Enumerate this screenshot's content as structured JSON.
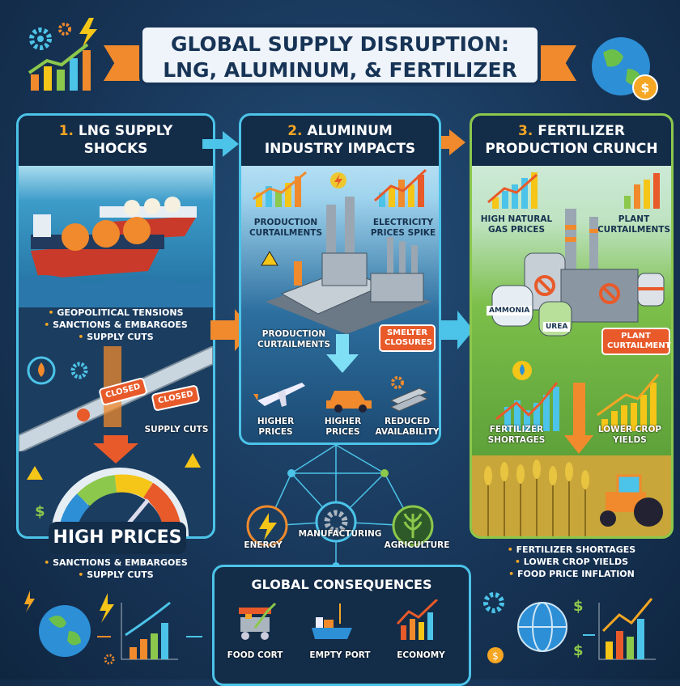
{
  "title": {
    "line1": "GLOBAL SUPPLY DISRUPTION:",
    "line2": "LNG, ALUMINUM, & FERTILIZER"
  },
  "panels": [
    {
      "number": "1.",
      "title_line1": "LNG SUPPLY",
      "title_line2": "SHOCKS",
      "bullets": [
        "GEOPOLITICAL TENSIONS",
        "SANCTIONS & EMBARGOES",
        "SUPPLY CUTS"
      ],
      "signs": [
        "CLOSED",
        "CLOSED"
      ],
      "supply_cuts_label": "SUPPLY CUTS",
      "gauge_label": "HIGH PRICES",
      "footer_bullets": [
        "SANCTIONS & EMBARGOES",
        "SUPPLY CUTS"
      ]
    },
    {
      "number": "2.",
      "title_line1": "ALUMINUM",
      "title_line2": "INDUSTRY IMPACTS",
      "chart_captions": [
        "PRODUCTION CURTAILMENTS",
        "ELECTRICITY PRICES SPIKE"
      ],
      "factory_label": "PRODUCTION CURTAILMENTS",
      "smelter_tag": "SMELTER CLOSURES",
      "effects": [
        {
          "icon": "airplane-icon",
          "label": "HIGHER PRICES"
        },
        {
          "icon": "car-icon",
          "label": "HIGHER PRICES"
        },
        {
          "icon": "aluminum-bars-icon",
          "label": "REDUCED AVAILABILITY"
        }
      ]
    },
    {
      "number": "3.",
      "title_line1": "FERTILIZER",
      "title_line2": "PRODUCTION CRUNCH",
      "chart_captions": [
        "HIGH NATURAL GAS PRICES",
        "PLANT CURTAILMENTS"
      ],
      "tanks": [
        "AMMONIA",
        "UREA"
      ],
      "plant_tag": "PLANT CURTAILMENTS",
      "bottom_captions": [
        "FERTILIZER SHORTAGES",
        "LOWER CROP YIELDS"
      ],
      "footer_bullets": [
        "FERTILIZER SHORTAGES",
        "LOWER CROP YIELDS",
        "FOOD PRICE INFLATION"
      ]
    }
  ],
  "network": {
    "nodes": [
      "ENERGY",
      "MANUFACTURING",
      "AGRICULTURE"
    ]
  },
  "consequences": {
    "title": "GLOBAL CONSEQUENCES",
    "items": [
      {
        "icon": "food-cart-icon",
        "label": "FOOD CORT"
      },
      {
        "icon": "ship-icon",
        "label": "EMPTY PORT"
      },
      {
        "icon": "rising-chart-icon",
        "label": "ECONOMY"
      }
    ]
  },
  "colors": {
    "background": "#173456",
    "accent_cyan": "#4cc3e8",
    "accent_orange": "#f08a2c",
    "alert_red": "#e85a2a",
    "green": "#8cc84b"
  }
}
